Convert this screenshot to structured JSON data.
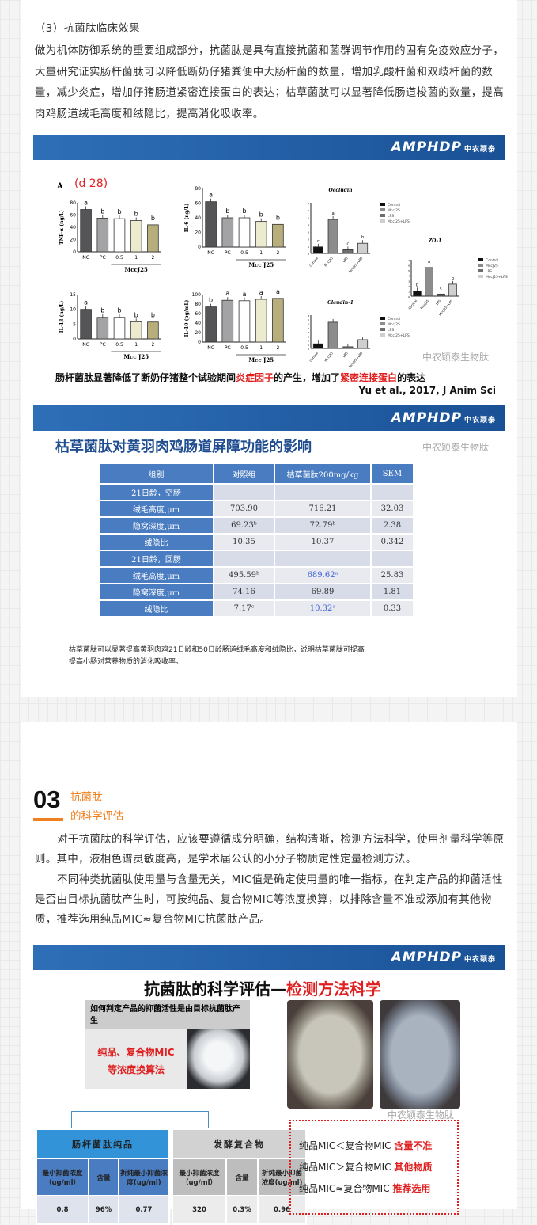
{
  "section3": {
    "heading": "（3）抗菌肽临床效果",
    "paragraph": "做为机体防御系统的重要组成部分，抗菌肽是具有直接抗菌和菌群调节作用的固有免疫效应分子，大量研究证实肠杆菌肽可以降低断奶仔猪粪便中大肠杆菌的数量，增加乳酸杆菌和双歧杆菌的数量，减少炎症，增加仔猪肠道紧密连接蛋白的表达；枯草菌肽可以显著降低肠道梭菌的数量，提高肉鸡肠道绒毛高度和绒隐比，提高消化吸收率。"
  },
  "brand": {
    "logo": "AMPHDP",
    "logo_cn": "中农颖泰",
    "header_color": "#2466ad"
  },
  "watermark": "中农颖泰生物肽",
  "slide1": {
    "panel_label": "A",
    "day_label": "(d 28)",
    "caption_pre": "肠杆菌肽显著降低了断奶仔猪整个试验期间",
    "caption_red1": "炎症因子",
    "caption_mid": "的产生，增加了",
    "caption_red2": "紧密连接蛋白",
    "caption_post": "的表达",
    "citation": "Yu et al., 2017, J Anim Sci",
    "legend": [
      "Control",
      "MccJ25",
      "LPS",
      "MccJ25+LPS"
    ]
  },
  "chart_data": [
    {
      "type": "bar",
      "ylabel": "TNF-α (ng/L)",
      "categories": [
        "NC",
        "PC",
        "0.5",
        "1",
        "2"
      ],
      "group_label": "MccJ25",
      "values": [
        69,
        55,
        54,
        51,
        44
      ],
      "letters": [
        "a",
        "b",
        "b",
        "b",
        "b"
      ],
      "ylim": [
        0,
        80
      ],
      "yticks": [
        0,
        20,
        40,
        60,
        80
      ],
      "colors": [
        "#555558",
        "#a3a3a6",
        "#ffffff",
        "#ecebd0",
        "#b7ae7b"
      ]
    },
    {
      "type": "bar",
      "ylabel": "IL-6 (ng/L)",
      "categories": [
        "NC",
        "PC",
        "0.5",
        "1",
        "2"
      ],
      "group_label": "Mcc J25",
      "values": [
        62,
        40,
        40,
        35,
        31
      ],
      "letters": [
        "a",
        "b",
        "b",
        "b",
        "b"
      ],
      "ylim": [
        0,
        80
      ],
      "yticks": [
        0,
        20,
        40,
        60,
        80
      ],
      "colors": [
        "#555558",
        "#a3a3a6",
        "#ffffff",
        "#ecebd0",
        "#b7ae7b"
      ]
    },
    {
      "type": "bar",
      "ylabel": "IL-1β (ng/L)",
      "categories": [
        "NC",
        "PC",
        "0.5",
        "1",
        "2"
      ],
      "group_label": "Mcc J25",
      "values": [
        10,
        7.3,
        7.3,
        5.8,
        5.7
      ],
      "letters": [
        "a",
        "b",
        "b",
        "b",
        "b"
      ],
      "ylim": [
        0,
        15
      ],
      "yticks": [
        0,
        5,
        10,
        15
      ],
      "colors": [
        "#555558",
        "#a3a3a6",
        "#ffffff",
        "#ecebd0",
        "#b7ae7b"
      ]
    },
    {
      "type": "bar",
      "ylabel": "IL-10 (pg/mL)",
      "categories": [
        "NC",
        "PC",
        "0.5",
        "1",
        "2"
      ],
      "group_label": "Mcc J25",
      "values": [
        74,
        88,
        87,
        90,
        92
      ],
      "letters": [
        "b",
        "a",
        "a",
        "a",
        "a"
      ],
      "ylim": [
        0,
        100
      ],
      "yticks": [
        0,
        20,
        40,
        60,
        80,
        100
      ],
      "colors": [
        "#555558",
        "#a3a3a6",
        "#ffffff",
        "#ecebd0",
        "#b7ae7b"
      ]
    },
    {
      "type": "bar",
      "title": "Occludin",
      "categories": [
        "Control",
        "MccJ25",
        "LPS",
        "MccJ25+LPS"
      ],
      "values": [
        0.9,
        4.7,
        0.5,
        1.4
      ],
      "letters": [
        "c",
        "a",
        "c",
        "b"
      ],
      "ylim": [
        0,
        7
      ],
      "yticks": [
        0,
        1,
        2,
        3,
        4,
        5,
        6,
        7
      ],
      "colors": [
        "#111111",
        "#8c8c8c",
        "#6e6e6e",
        "#cfcfcf"
      ]
    },
    {
      "type": "bar",
      "title": "ZO-1",
      "categories": [
        "Control",
        "MccJ25",
        "LPS",
        "MccJ25+LPS"
      ],
      "values": [
        1.0,
        5.5,
        0.4,
        2.3
      ],
      "letters": [
        "b",
        "a",
        "c",
        "b"
      ],
      "ylim": [
        0,
        7
      ],
      "yticks": [
        0,
        1,
        2,
        3,
        4,
        5,
        6,
        7
      ],
      "colors": [
        "#111111",
        "#8c8c8c",
        "#6e6e6e",
        "#cfcfcf"
      ]
    },
    {
      "type": "bar",
      "title": "Claudin-1",
      "categories": [
        "Control",
        "MccJ25",
        "LPS",
        "MccJ25+LPS"
      ],
      "values": [
        1.1,
        6.3,
        0.4,
        2.1
      ],
      "letters": [
        "",
        "",
        "",
        ""
      ],
      "ylim": [
        0,
        8
      ],
      "yticks": [
        0,
        1,
        2,
        3,
        4,
        5,
        6,
        7,
        8
      ],
      "colors": [
        "#111111",
        "#8c8c8c",
        "#6e6e6e",
        "#cfcfcf"
      ]
    }
  ],
  "slide2": {
    "title": "枯草菌肽对黄羽肉鸡肠道屏障功能的影响",
    "headers": [
      "组别",
      "对照组",
      "枯草菌肽200mg/kg",
      "SEM"
    ],
    "rows": [
      [
        "21日龄，空肠",
        "",
        "",
        ""
      ],
      [
        "绒毛高度,μm",
        "703.90",
        "716.21",
        "32.03"
      ],
      [
        "隐窝深度,μm",
        "69.23ᵇ",
        "72.79ᵇ",
        "2.38"
      ],
      [
        "绒隐比",
        "10.35",
        "10.37",
        "0.342"
      ],
      [
        "21日龄，回肠",
        "",
        "",
        ""
      ],
      [
        "绒毛高度,μm",
        "495.59ᵇ",
        "689.62ᵃ",
        "25.83"
      ],
      [
        "隐窝深度,μm",
        "74.16",
        "69.89",
        "1.81"
      ],
      [
        "绒隐比",
        "7.17ᶜ",
        "10.32ᵃ",
        "0.33"
      ]
    ],
    "caption_line1": "枯草菌肽可以显著提高黄羽肉鸡21日龄和50日龄肠道绒毛高度和绒隐比，说明枯草菌肽可提高",
    "caption_line2": "提高小肠对营养物质的消化吸收率。"
  },
  "section03": {
    "number": "03",
    "title_line1": "抗菌肽",
    "title_line2": "的科学评估",
    "accent_color": "#f07f1d",
    "paragraph1": "对于抗菌肽的科学评估，应该要遵循成分明确，结构清晰，检测方法科学，使用剂量科学等原则。其中，液相色谱灵敏度高，是学术届公认的小分子物质定性定量检测方法。",
    "paragraph2": "不同种类抗菌肽使用量与含量无关，MIC值是确定使用量的唯一指标，在判定产品的抑菌活性是否由目标抗菌肽产生时，可按纯品、复合物MIC等浓度换算，以排除含量不准或添加有其他物质，推荐选用纯品MIC≈复合物MIC抗菌肽产品。"
  },
  "slide3": {
    "title_black": "抗菌肽的科学评估—",
    "title_red": "检测方法科学",
    "question": "如何判定产品的抑菌活性是由目标抗菌肽产生",
    "method_line1": "纯品、复合物MIC",
    "method_line2": "等浓度换算法",
    "pure": {
      "title": "肠杆菌肽纯品",
      "headers": [
        "最小抑菌浓度（ug/ml）",
        "含量",
        "折纯最小抑菌浓度(ug/ml)"
      ],
      "values": [
        "0.8",
        "96%",
        "0.77"
      ]
    },
    "compound": {
      "title": "发酵复合物",
      "headers": [
        "最小抑菌浓度（ug/ml）",
        "含量",
        "折纯最小抑菌浓度(ug/ml)"
      ],
      "values": [
        "320",
        "0.3%",
        "0.96"
      ]
    },
    "rules": [
      {
        "text": "纯品MIC＜复合物MIC ",
        "tag": "含量不准"
      },
      {
        "text": "纯品MIC＞复合物MIC ",
        "tag": "其他物质"
      },
      {
        "text": "纯品MIC≈复合物MIC  ",
        "tag": "推荐选用"
      }
    ]
  }
}
